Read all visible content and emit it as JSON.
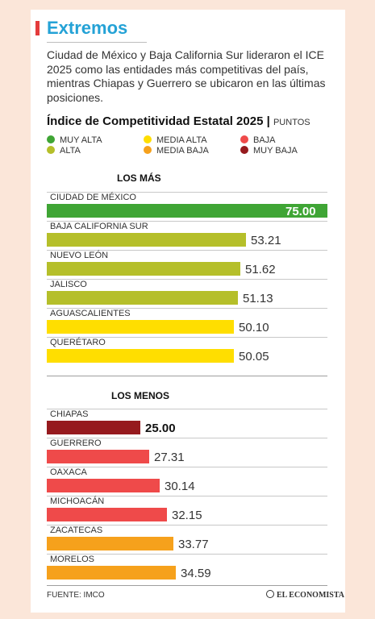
{
  "header": {
    "title": "Extremos",
    "description": "Ciudad de México y Baja California Sur lideraron el ICE 2025 como las entidades más competitivas del país, mientras Chiapas y Guerrero se ubicaron en las últimas posiciones."
  },
  "chart_data": {
    "type": "bar",
    "title": "Índice de Competitividad Estatal 2025",
    "unit": "PUNTOS",
    "legend": [
      {
        "label": "MUY ALTA",
        "color": "#3fa535"
      },
      {
        "label": "MEDIA ALTA",
        "color": "#ffde00"
      },
      {
        "label": "BAJA",
        "color": "#ef4a4a"
      },
      {
        "label": "ALTA",
        "color": "#b5bf2a"
      },
      {
        "label": "MEDIA BAJA",
        "color": "#f6a11c"
      },
      {
        "label": "MUY BAJA",
        "color": "#961a1e"
      }
    ],
    "xlim": [
      0,
      75
    ],
    "groups": [
      {
        "label": "LOS MÁS",
        "rows": [
          {
            "name": "CIUDAD DE MÉXICO",
            "value": 75.0,
            "display": "75.00",
            "color": "#3fa535"
          },
          {
            "name": "BAJA CALIFORNIA SUR",
            "value": 53.21,
            "display": "53.21",
            "color": "#b5bf2a"
          },
          {
            "name": "NUEVO LEÓN",
            "value": 51.62,
            "display": "51.62",
            "color": "#b5bf2a"
          },
          {
            "name": "JALISCO",
            "value": 51.13,
            "display": "51.13",
            "color": "#b5bf2a"
          },
          {
            "name": "AGUASCALIENTES",
            "value": 50.1,
            "display": "50.10",
            "color": "#ffde00"
          },
          {
            "name": "QUERÉTARO",
            "value": 50.05,
            "display": "50.05",
            "color": "#ffde00"
          }
        ]
      },
      {
        "label": "LOS MENOS",
        "rows": [
          {
            "name": "CHIAPAS",
            "value": 25.0,
            "display": "25.00",
            "color": "#961a1e"
          },
          {
            "name": "GUERRERO",
            "value": 27.31,
            "display": "27.31",
            "color": "#ef4a4a"
          },
          {
            "name": "OAXACA",
            "value": 30.14,
            "display": "30.14",
            "color": "#ef4a4a"
          },
          {
            "name": "MICHOACÁN",
            "value": 32.15,
            "display": "32.15",
            "color": "#ef4a4a"
          },
          {
            "name": "ZACATECAS",
            "value": 33.77,
            "display": "33.77",
            "color": "#f6a11c"
          },
          {
            "name": "MORELOS",
            "value": 34.59,
            "display": "34.59",
            "color": "#f6a11c"
          }
        ]
      }
    ]
  },
  "footer": {
    "source": "FUENTE: IMCO",
    "brand": "EL ECONOMISTA"
  }
}
